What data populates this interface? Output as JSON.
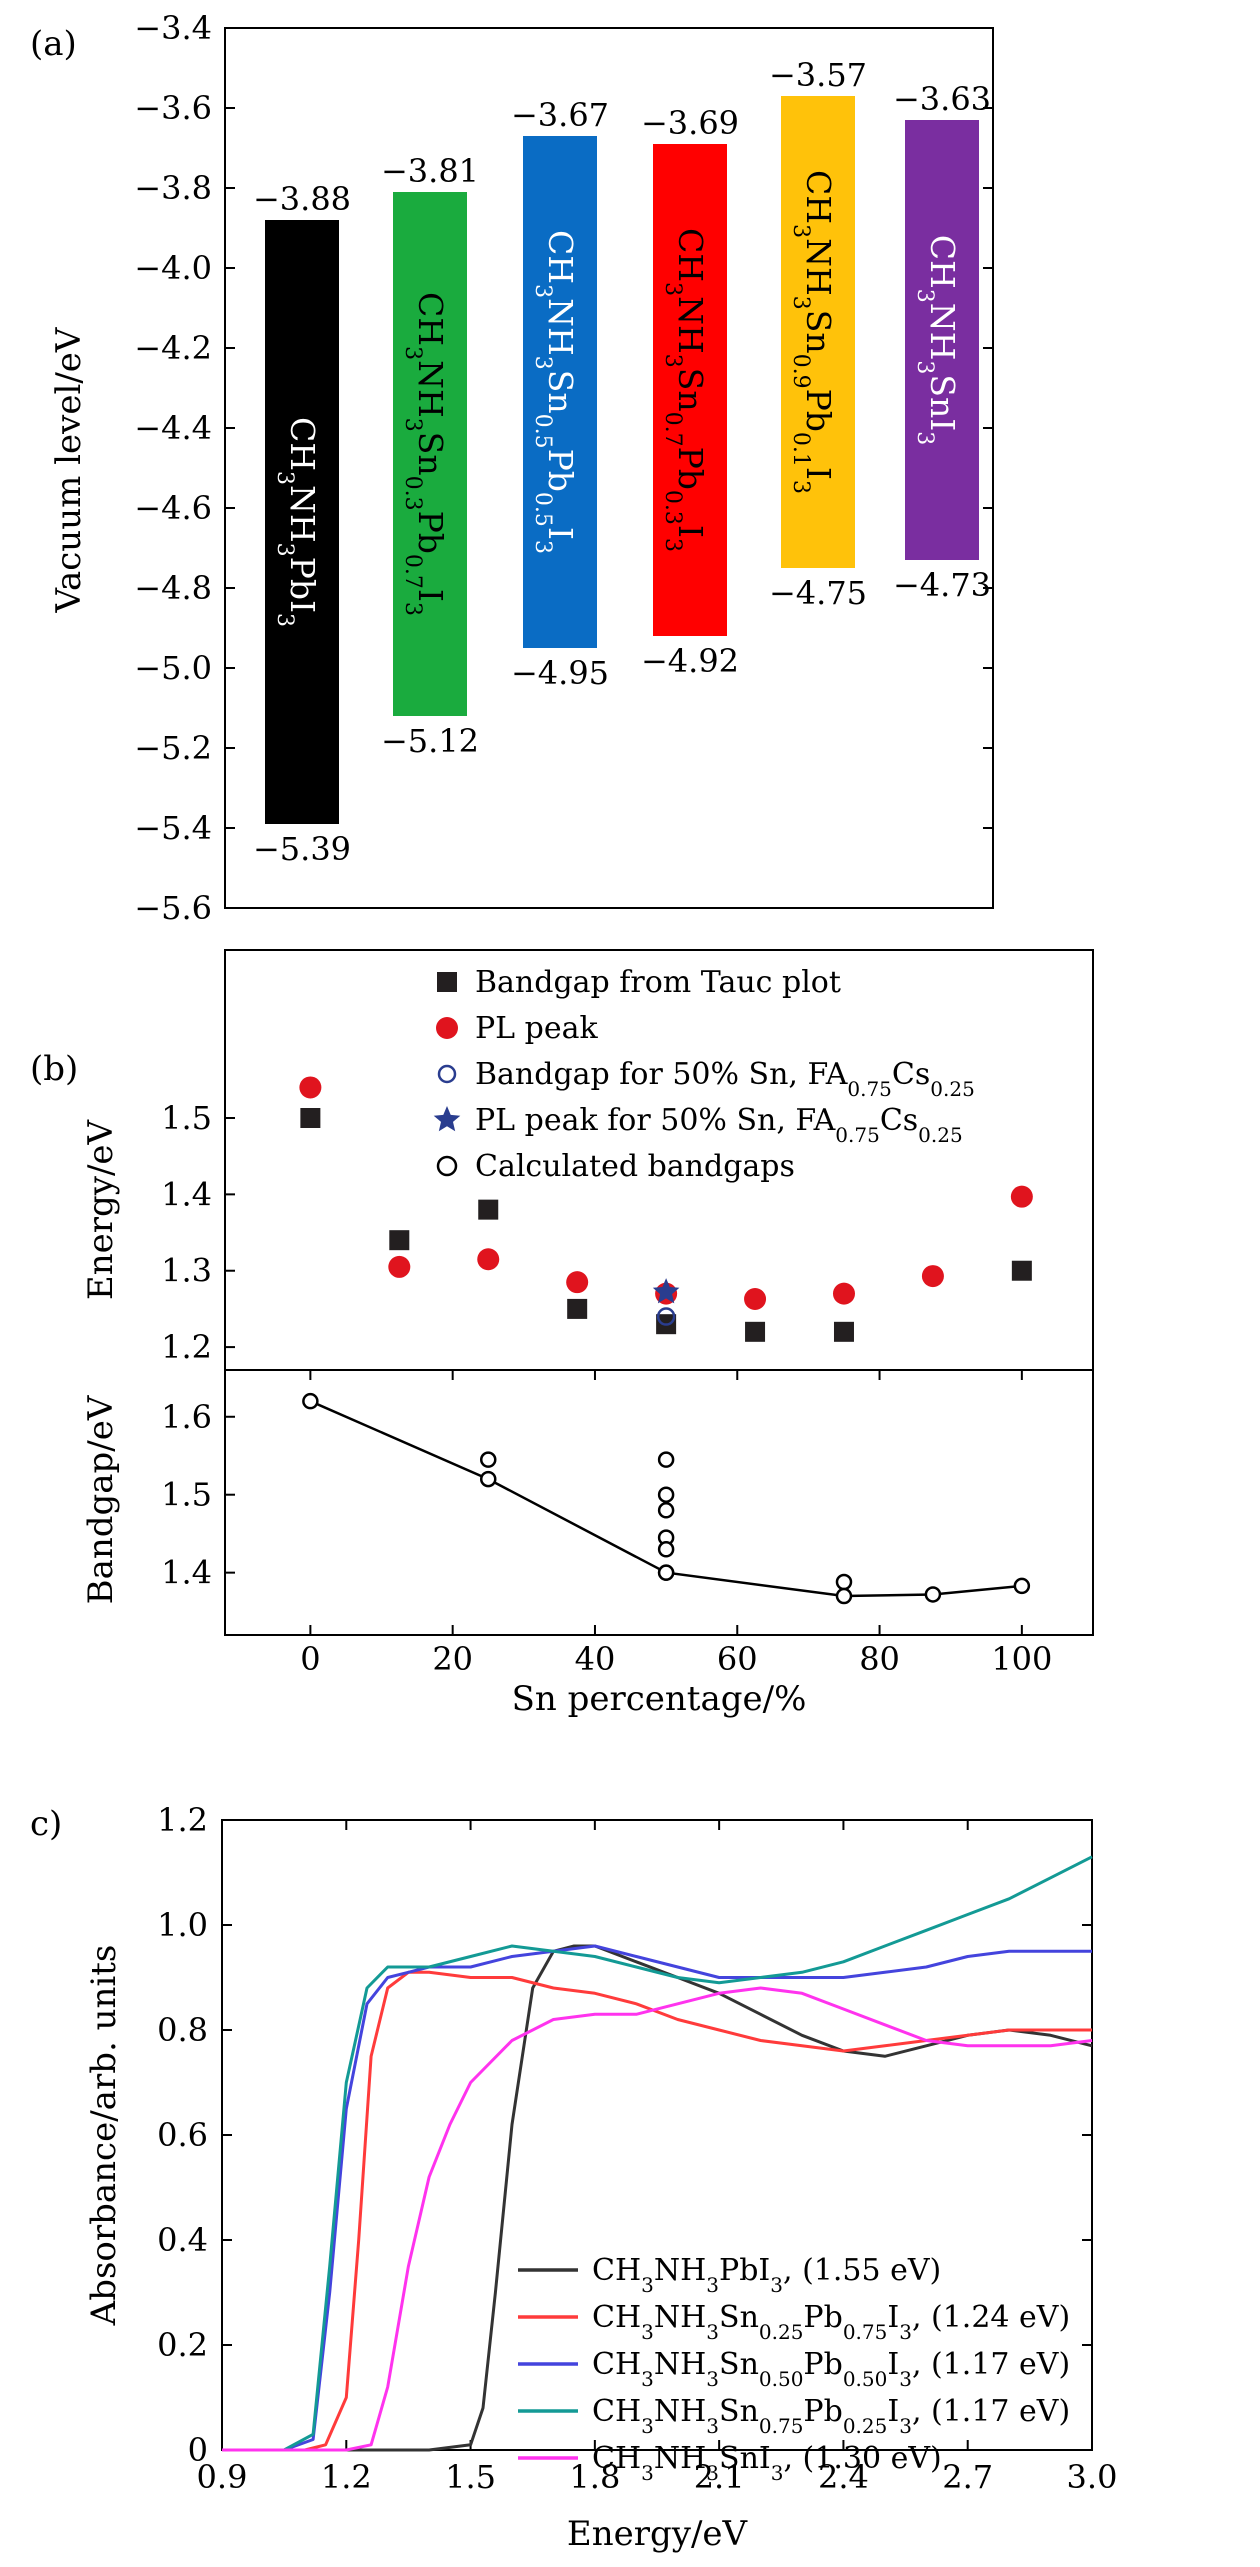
{
  "panel_a": {
    "label": "(a)",
    "ylabel": "Vacuum level/eV",
    "yticks": [
      "−3.4",
      "−3.6",
      "−3.8",
      "−4.0",
      "−4.2",
      "−4.4",
      "−4.6",
      "−4.8",
      "−5.0",
      "−5.2",
      "−5.4",
      "−5.6"
    ],
    "bars": [
      {
        "name_html": "CH<tspan class=\"sub\">3</tspan>NH<tspan class=\"sub\">3</tspan>PbI<tspan class=\"sub\">3</tspan>",
        "parts": [
          [
            "CH",
            ""
          ],
          [
            "3",
            "s"
          ],
          [
            "NH",
            ""
          ],
          [
            "3",
            "s"
          ],
          [
            "PbI",
            ""
          ],
          [
            "3",
            "s"
          ]
        ],
        "top": -3.88,
        "bottom": -5.39,
        "top_label": "−3.88",
        "bottom_label": "−5.39",
        "color": "#000000",
        "text_dark": false
      },
      {
        "parts": [
          [
            "CH",
            ""
          ],
          [
            "3",
            "s"
          ],
          [
            "NH",
            ""
          ],
          [
            "3",
            "s"
          ],
          [
            "Sn",
            ""
          ],
          [
            "0.3",
            "s"
          ],
          [
            "Pb",
            ""
          ],
          [
            "0.7",
            "s"
          ],
          [
            "I",
            ""
          ],
          [
            "3",
            "s"
          ]
        ],
        "top": -3.81,
        "bottom": -5.12,
        "top_label": "−3.81",
        "bottom_label": "−5.12",
        "color": "#1aab3e",
        "text_dark": true
      },
      {
        "parts": [
          [
            "CH",
            ""
          ],
          [
            "3",
            "s"
          ],
          [
            "NH",
            ""
          ],
          [
            "3",
            "s"
          ],
          [
            "Sn",
            ""
          ],
          [
            "0.5",
            "s"
          ],
          [
            "Pb",
            ""
          ],
          [
            "0.5",
            "s"
          ],
          [
            "I",
            ""
          ],
          [
            "3",
            "s"
          ]
        ],
        "top": -3.67,
        "bottom": -4.95,
        "top_label": "−3.67",
        "bottom_label": "−4.95",
        "color": "#0a6cc4",
        "text_dark": false
      },
      {
        "parts": [
          [
            "CH",
            ""
          ],
          [
            "3",
            "s"
          ],
          [
            "NH",
            ""
          ],
          [
            "3",
            "s"
          ],
          [
            "Sn",
            ""
          ],
          [
            "0.7",
            "s"
          ],
          [
            "Pb",
            ""
          ],
          [
            "0.3",
            "s"
          ],
          [
            "I",
            ""
          ],
          [
            "3",
            "s"
          ]
        ],
        "top": -3.69,
        "bottom": -4.92,
        "top_label": "−3.69",
        "bottom_label": "−4.92",
        "color": "#ff0000",
        "text_dark": true
      },
      {
        "parts": [
          [
            "CH",
            ""
          ],
          [
            "3",
            "s"
          ],
          [
            "NH",
            ""
          ],
          [
            "3",
            "s"
          ],
          [
            "Sn",
            ""
          ],
          [
            "0.9",
            "s"
          ],
          [
            "Pb",
            ""
          ],
          [
            "0.1",
            "s"
          ],
          [
            "I",
            ""
          ],
          [
            "3",
            "s"
          ]
        ],
        "top": -3.57,
        "bottom": -4.75,
        "top_label": "−3.57",
        "bottom_label": "−4.75",
        "color": "#ffc20a",
        "text_dark": true
      },
      {
        "parts": [
          [
            "CH",
            ""
          ],
          [
            "3",
            "s"
          ],
          [
            "NH",
            ""
          ],
          [
            "3",
            "s"
          ],
          [
            "SnI",
            ""
          ],
          [
            "3",
            "s"
          ]
        ],
        "top": -3.63,
        "bottom": -4.73,
        "top_label": "−3.63",
        "bottom_label": "−4.73",
        "color": "#7a2ea0",
        "text_dark": false
      }
    ]
  },
  "panel_b": {
    "label": "(b)",
    "ylabel_top": "Energy/eV",
    "ylabel_bottom": "Bandgap/eV",
    "xlabel": "Sn percentage/%",
    "xticks": [
      "0",
      "20",
      "40",
      "60",
      "80",
      "100"
    ],
    "yticks_top": [
      "1.2",
      "1.3",
      "1.4",
      "1.5"
    ],
    "yticks_bottom": [
      "1.4",
      "1.5",
      "1.6"
    ],
    "legend": [
      {
        "parts": [
          [
            "Bandgap from Tauc plot",
            ""
          ]
        ],
        "marker": "square"
      },
      {
        "parts": [
          [
            "PL peak",
            ""
          ]
        ],
        "marker": "red-circle"
      },
      {
        "parts": [
          [
            "Bandgap for 50% Sn, FA",
            ""
          ],
          [
            "0.75",
            "s"
          ],
          [
            "Cs",
            ""
          ],
          [
            "0.25",
            "s"
          ]
        ],
        "marker": "blue-open-circle"
      },
      {
        "parts": [
          [
            "PL peak for 50% Sn, FA",
            ""
          ],
          [
            "0.75",
            "s"
          ],
          [
            "Cs",
            ""
          ],
          [
            "0.25",
            "s"
          ]
        ],
        "marker": "blue-star"
      },
      {
        "parts": [
          [
            "Calculated bandgaps",
            ""
          ]
        ],
        "marker": "open-circle"
      }
    ]
  },
  "panel_c": {
    "label": "c)",
    "ylabel": "Absorbance/arb. units",
    "xlabel": "Energy/eV",
    "xticks": [
      "0.9",
      "1.2",
      "1.5",
      "1.8",
      "2.1",
      "2.4",
      "2.7",
      "3.0"
    ],
    "yticks": [
      "0",
      "0.2",
      "0.4",
      "0.6",
      "0.8",
      "1.0",
      "1.2"
    ],
    "legend": [
      {
        "parts": [
          [
            "CH",
            ""
          ],
          [
            "3",
            "s"
          ],
          [
            "NH",
            ""
          ],
          [
            "3",
            "s"
          ],
          [
            "PbI",
            ""
          ],
          [
            "3",
            "s"
          ],
          [
            ", (1.55 eV)",
            ""
          ]
        ],
        "color": "#333333"
      },
      {
        "parts": [
          [
            "CH",
            ""
          ],
          [
            "3",
            "s"
          ],
          [
            "NH",
            ""
          ],
          [
            "3",
            "s"
          ],
          [
            "Sn",
            ""
          ],
          [
            "0.25",
            "s"
          ],
          [
            "Pb",
            ""
          ],
          [
            "0.75",
            "s"
          ],
          [
            "I",
            ""
          ],
          [
            "3",
            "s"
          ],
          [
            ", (1.24 eV)",
            ""
          ]
        ],
        "color": "#ff3b3b"
      },
      {
        "parts": [
          [
            "CH",
            ""
          ],
          [
            "3",
            "s"
          ],
          [
            "NH",
            ""
          ],
          [
            "3",
            "s"
          ],
          [
            "Sn",
            ""
          ],
          [
            "0.50",
            "s"
          ],
          [
            "Pb",
            ""
          ],
          [
            "0.50",
            "s"
          ],
          [
            "I",
            ""
          ],
          [
            "3",
            "s"
          ],
          [
            ", (1.17 eV)",
            ""
          ]
        ],
        "color": "#4444dd"
      },
      {
        "parts": [
          [
            "CH",
            ""
          ],
          [
            "3",
            "s"
          ],
          [
            "NH",
            ""
          ],
          [
            "3",
            "s"
          ],
          [
            "Sn",
            ""
          ],
          [
            "0.75",
            "s"
          ],
          [
            "Pb",
            ""
          ],
          [
            "0.25",
            "s"
          ],
          [
            "I",
            ""
          ],
          [
            "3",
            "s"
          ],
          [
            ", (1.17 eV)",
            ""
          ]
        ],
        "color": "#139a95"
      },
      {
        "parts": [
          [
            "CH",
            ""
          ],
          [
            "3",
            "s"
          ],
          [
            "NH",
            ""
          ],
          [
            "3",
            "s"
          ],
          [
            "SnI",
            ""
          ],
          [
            "3",
            "s"
          ],
          [
            ", (1.30 eV)",
            ""
          ]
        ],
        "color": "#ff33ee"
      }
    ]
  },
  "chart_data": [
    {
      "type": "bar",
      "categories": [
        "CH3NH3PbI3",
        "CH3NH3Sn0.3Pb0.7I3",
        "CH3NH3Sn0.5Pb0.5I3",
        "CH3NH3Sn0.7Pb0.3I3",
        "CH3NH3Sn0.9Pb0.1I3",
        "CH3NH3SnI3"
      ],
      "series": [
        {
          "name": "top",
          "values": [
            -3.88,
            -3.81,
            -3.67,
            -3.69,
            -3.57,
            -3.63
          ]
        },
        {
          "name": "bottom",
          "values": [
            -5.39,
            -5.12,
            -4.95,
            -4.92,
            -4.75,
            -4.73
          ]
        }
      ],
      "ylabel": "Vacuum level/eV",
      "ylim": [
        -5.6,
        -3.4
      ]
    },
    {
      "type": "scatter",
      "xlabel": "Sn percentage/%",
      "ylabel": "Energy/eV",
      "xlim": [
        -12,
        110
      ],
      "ylim": [
        1.17,
        1.72
      ],
      "series": [
        {
          "name": "Bandgap from Tauc plot",
          "x": [
            0,
            12.5,
            25,
            37.5,
            50,
            62.5,
            75,
            100
          ],
          "y": [
            1.5,
            1.34,
            1.38,
            1.25,
            1.23,
            1.22,
            1.22,
            1.3
          ]
        },
        {
          "name": "PL peak",
          "x": [
            0,
            12.5,
            25,
            37.5,
            50,
            62.5,
            75,
            87.5,
            100
          ],
          "y": [
            1.54,
            1.305,
            1.315,
            1.285,
            1.27,
            1.263,
            1.27,
            1.293,
            1.397
          ]
        },
        {
          "name": "Bandgap for 50% Sn, FA0.75Cs0.25",
          "x": [
            50
          ],
          "y": [
            1.24
          ]
        },
        {
          "name": "PL peak for 50% Sn, FA0.75Cs0.25",
          "x": [
            50
          ],
          "y": [
            1.272
          ]
        }
      ]
    },
    {
      "type": "scatter",
      "xlabel": "Sn percentage/%",
      "ylabel": "Bandgap/eV",
      "xlim": [
        -12,
        110
      ],
      "ylim": [
        1.32,
        1.66
      ],
      "series": [
        {
          "name": "Calculated bandgaps",
          "x": [
            0,
            25,
            25,
            50,
            50,
            50,
            50,
            50,
            50,
            50,
            75,
            75,
            87.5,
            100
          ],
          "y": [
            1.62,
            1.545,
            1.52,
            1.545,
            1.5,
            1.48,
            1.445,
            1.43,
            1.4,
            1.4,
            1.388,
            1.37,
            1.372,
            1.383
          ]
        },
        {
          "name": "line",
          "x": [
            0,
            25,
            50,
            75,
            87.5,
            100
          ],
          "y": [
            1.62,
            1.52,
            1.4,
            1.37,
            1.372,
            1.383
          ]
        }
      ]
    },
    {
      "type": "line",
      "xlabel": "Energy/eV",
      "ylabel": "Absorbance/arb. units",
      "xlim": [
        0.9,
        3.0
      ],
      "ylim": [
        0,
        1.2
      ],
      "series": [
        {
          "name": "CH3NH3PbI3, (1.55 eV)",
          "x": [
            0.9,
            1.4,
            1.5,
            1.53,
            1.56,
            1.6,
            1.65,
            1.7,
            1.75,
            1.8,
            1.9,
            2.0,
            2.1,
            2.2,
            2.3,
            2.4,
            2.5,
            2.6,
            2.7,
            2.8,
            2.9,
            3.0
          ],
          "y": [
            0,
            0,
            0.01,
            0.08,
            0.3,
            0.62,
            0.88,
            0.95,
            0.96,
            0.96,
            0.93,
            0.9,
            0.87,
            0.83,
            0.79,
            0.76,
            0.75,
            0.77,
            0.79,
            0.8,
            0.79,
            0.77
          ]
        },
        {
          "name": "CH3NH3Sn0.25Pb0.75I3, (1.24 eV)",
          "x": [
            0.9,
            1.1,
            1.15,
            1.2,
            1.23,
            1.26,
            1.3,
            1.35,
            1.4,
            1.5,
            1.6,
            1.7,
            1.8,
            1.9,
            2.0,
            2.1,
            2.2,
            2.3,
            2.4,
            2.5,
            2.6,
            2.7,
            2.8,
            2.9,
            3.0
          ],
          "y": [
            0,
            0,
            0.01,
            0.1,
            0.4,
            0.75,
            0.88,
            0.91,
            0.91,
            0.9,
            0.9,
            0.88,
            0.87,
            0.85,
            0.82,
            0.8,
            0.78,
            0.77,
            0.76,
            0.77,
            0.78,
            0.79,
            0.8,
            0.8,
            0.8
          ]
        },
        {
          "name": "CH3NH3Sn0.50Pb0.50I3, (1.17 eV)",
          "x": [
            0.9,
            1.05,
            1.12,
            1.16,
            1.2,
            1.25,
            1.3,
            1.35,
            1.4,
            1.5,
            1.6,
            1.7,
            1.8,
            1.9,
            2.0,
            2.1,
            2.2,
            2.3,
            2.4,
            2.5,
            2.6,
            2.7,
            2.8,
            2.9,
            3.0
          ],
          "y": [
            0,
            0,
            0.02,
            0.3,
            0.65,
            0.85,
            0.9,
            0.91,
            0.92,
            0.92,
            0.94,
            0.95,
            0.96,
            0.94,
            0.92,
            0.9,
            0.9,
            0.9,
            0.9,
            0.91,
            0.92,
            0.94,
            0.95,
            0.95,
            0.95
          ]
        },
        {
          "name": "CH3NH3Sn0.75Pb0.25I3, (1.17 eV)",
          "x": [
            0.9,
            1.05,
            1.12,
            1.16,
            1.2,
            1.25,
            1.3,
            1.35,
            1.4,
            1.5,
            1.6,
            1.7,
            1.8,
            1.9,
            2.0,
            2.1,
            2.2,
            2.3,
            2.4,
            2.5,
            2.6,
            2.7,
            2.8,
            2.9,
            3.0
          ],
          "y": [
            0,
            0,
            0.03,
            0.35,
            0.7,
            0.88,
            0.92,
            0.92,
            0.92,
            0.94,
            0.96,
            0.95,
            0.94,
            0.92,
            0.9,
            0.89,
            0.9,
            0.91,
            0.93,
            0.96,
            0.99,
            1.02,
            1.05,
            1.09,
            1.13
          ]
        },
        {
          "name": "CH3NH3SnI3, (1.30 eV)",
          "x": [
            0.9,
            1.2,
            1.26,
            1.3,
            1.35,
            1.4,
            1.45,
            1.5,
            1.6,
            1.7,
            1.8,
            1.9,
            2.0,
            2.1,
            2.2,
            2.3,
            2.4,
            2.5,
            2.6,
            2.7,
            2.8,
            2.9,
            3.0
          ],
          "y": [
            0,
            0,
            0.01,
            0.12,
            0.35,
            0.52,
            0.62,
            0.7,
            0.78,
            0.82,
            0.83,
            0.83,
            0.85,
            0.87,
            0.88,
            0.87,
            0.84,
            0.81,
            0.78,
            0.77,
            0.77,
            0.77,
            0.78
          ]
        }
      ]
    }
  ]
}
